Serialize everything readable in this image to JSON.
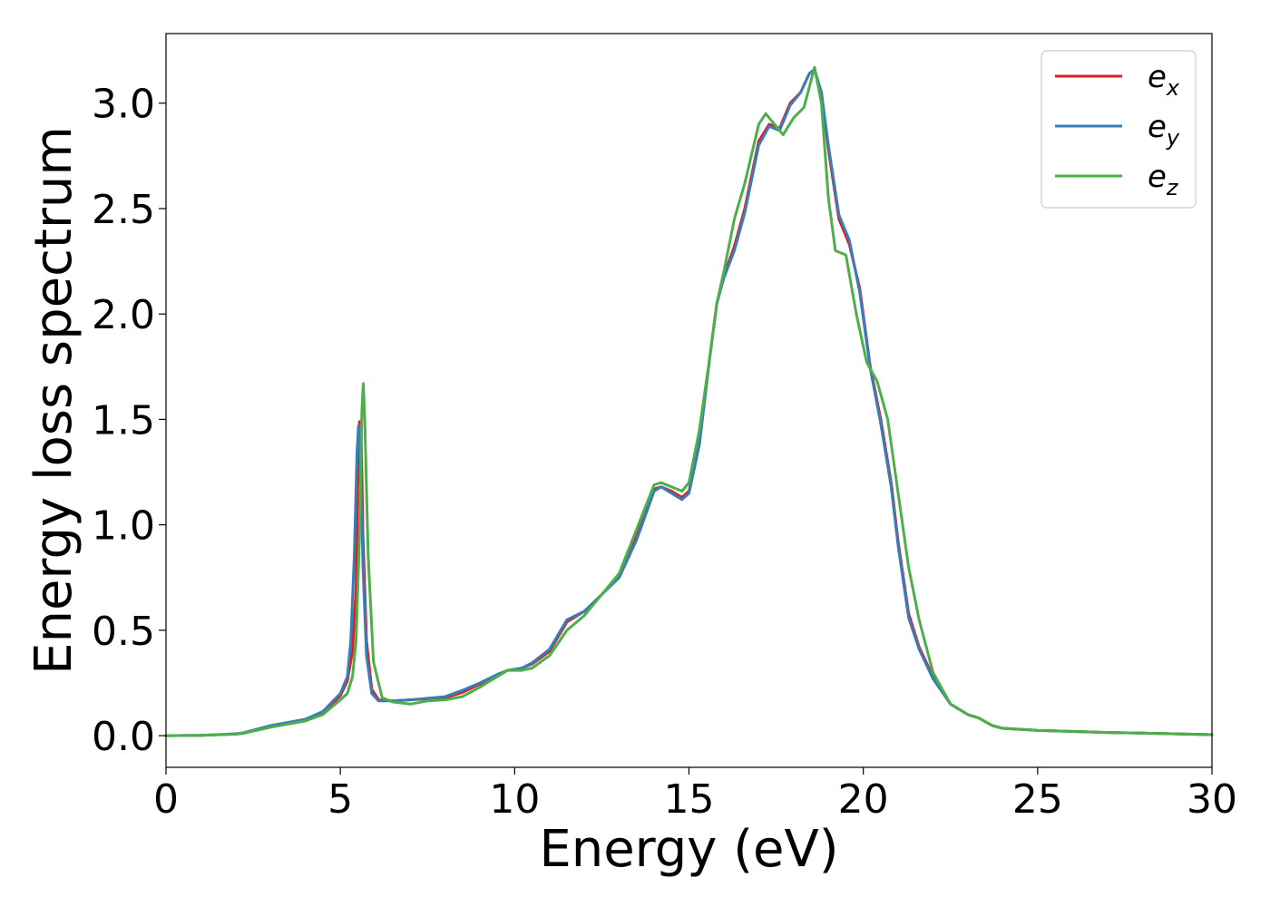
{
  "chart_data": {
    "type": "line",
    "title": "",
    "xlabel": "Energy (eV)",
    "ylabel": "Energy loss spectrum",
    "xlim": [
      0,
      30
    ],
    "ylim": [
      -0.15,
      3.33
    ],
    "xticks": [
      0,
      5,
      10,
      15,
      20,
      25,
      30
    ],
    "xtick_labels": [
      "0",
      "5",
      "10",
      "15",
      "20",
      "25",
      "30"
    ],
    "yticks": [
      0.0,
      0.5,
      1.0,
      1.5,
      2.0,
      2.5,
      3.0
    ],
    "ytick_labels": [
      "0.0",
      "0.5",
      "1.0",
      "1.5",
      "2.0",
      "2.5",
      "3.0"
    ],
    "grid": false,
    "legend_position": "top-right",
    "series": [
      {
        "name": "e_x",
        "legend_base": "e",
        "legend_sub": "x",
        "color": "#e41a1c",
        "x": [
          0,
          1,
          2,
          2.2,
          3,
          4,
          4.5,
          5,
          5.2,
          5.35,
          5.45,
          5.5,
          5.55,
          5.6,
          5.65,
          5.75,
          5.9,
          6.1,
          6.5,
          7,
          8,
          8.5,
          9,
          9.5,
          9.8,
          10.2,
          10.5,
          11,
          11.5,
          12,
          12.5,
          13,
          13.5,
          14,
          14.2,
          14.5,
          14.8,
          15,
          15.3,
          15.6,
          15.8,
          16,
          16.3,
          16.6,
          17,
          17.3,
          17.6,
          17.9,
          18.2,
          18.45,
          18.6,
          18.8,
          19,
          19.3,
          19.6,
          19.9,
          20.2,
          20.5,
          20.8,
          21,
          21.3,
          21.6,
          22,
          22.5,
          23,
          23.3,
          23.7,
          24,
          25,
          27,
          28,
          30
        ],
        "y": [
          0.0,
          0.002,
          0.008,
          0.012,
          0.045,
          0.075,
          0.11,
          0.19,
          0.26,
          0.4,
          0.7,
          1.2,
          1.49,
          1.42,
          0.95,
          0.45,
          0.22,
          0.17,
          0.165,
          0.17,
          0.18,
          0.205,
          0.245,
          0.29,
          0.31,
          0.32,
          0.34,
          0.4,
          0.54,
          0.59,
          0.67,
          0.76,
          0.95,
          1.17,
          1.18,
          1.16,
          1.13,
          1.16,
          1.4,
          1.8,
          2.05,
          2.18,
          2.32,
          2.5,
          2.82,
          2.9,
          2.88,
          3.0,
          3.05,
          3.14,
          3.16,
          3.05,
          2.78,
          2.45,
          2.33,
          2.12,
          1.75,
          1.5,
          1.2,
          0.92,
          0.58,
          0.42,
          0.28,
          0.15,
          0.1,
          0.085,
          0.048,
          0.035,
          0.025,
          0.015,
          0.012,
          0.005
        ]
      },
      {
        "name": "e_y",
        "legend_base": "e",
        "legend_sub": "y",
        "color": "#377eb8",
        "x": [
          0,
          1,
          2,
          2.2,
          3,
          4,
          4.5,
          5,
          5.2,
          5.3,
          5.4,
          5.48,
          5.52,
          5.58,
          5.65,
          5.75,
          5.9,
          6.1,
          6.5,
          7,
          8,
          8.5,
          9,
          9.5,
          9.8,
          10.2,
          10.5,
          11,
          11.5,
          12,
          12.5,
          13,
          13.5,
          14,
          14.2,
          14.5,
          14.8,
          15,
          15.3,
          15.6,
          15.8,
          16,
          16.3,
          16.6,
          17,
          17.3,
          17.6,
          17.9,
          18.2,
          18.45,
          18.6,
          18.8,
          19,
          19.3,
          19.6,
          19.9,
          20.2,
          20.5,
          20.8,
          21,
          21.3,
          21.6,
          22,
          22.5,
          23,
          23.3,
          23.7,
          24,
          25,
          27,
          28,
          30
        ],
        "y": [
          0.0,
          0.002,
          0.009,
          0.013,
          0.048,
          0.078,
          0.115,
          0.2,
          0.28,
          0.45,
          0.85,
          1.35,
          1.47,
          1.3,
          0.8,
          0.38,
          0.2,
          0.165,
          0.165,
          0.17,
          0.185,
          0.215,
          0.25,
          0.29,
          0.31,
          0.32,
          0.345,
          0.41,
          0.55,
          0.59,
          0.67,
          0.75,
          0.93,
          1.16,
          1.18,
          1.15,
          1.12,
          1.15,
          1.38,
          1.8,
          2.05,
          2.17,
          2.3,
          2.48,
          2.8,
          2.89,
          2.87,
          2.99,
          3.05,
          3.14,
          3.16,
          3.05,
          2.8,
          2.47,
          2.35,
          2.1,
          1.74,
          1.48,
          1.18,
          0.9,
          0.56,
          0.41,
          0.27,
          0.15,
          0.1,
          0.085,
          0.048,
          0.035,
          0.025,
          0.015,
          0.012,
          0.005
        ]
      },
      {
        "name": "e_z",
        "legend_base": "e",
        "legend_sub": "z",
        "color": "#4daf4a",
        "x": [
          0,
          1,
          2,
          2.2,
          3,
          4,
          4.5,
          5,
          5.2,
          5.35,
          5.45,
          5.55,
          5.62,
          5.66,
          5.7,
          5.8,
          5.95,
          6.2,
          6.5,
          7,
          7.5,
          8,
          8.5,
          9,
          9.5,
          9.8,
          10.2,
          10.5,
          11,
          11.5,
          12,
          12.5,
          13,
          13.5,
          14,
          14.2,
          14.5,
          14.8,
          15,
          15.3,
          15.6,
          15.8,
          16,
          16.3,
          16.6,
          17,
          17.2,
          17.5,
          17.7,
          18,
          18.3,
          18.6,
          18.8,
          19,
          19.2,
          19.5,
          19.8,
          20.1,
          20.4,
          20.7,
          21,
          21.3,
          21.6,
          22,
          22.5,
          23,
          23.3,
          23.7,
          24,
          25,
          27,
          28,
          30
        ],
        "y": [
          0.0,
          0.002,
          0.007,
          0.011,
          0.04,
          0.07,
          0.1,
          0.17,
          0.2,
          0.28,
          0.45,
          0.95,
          1.55,
          1.67,
          1.5,
          0.85,
          0.35,
          0.18,
          0.16,
          0.15,
          0.165,
          0.17,
          0.185,
          0.23,
          0.28,
          0.31,
          0.31,
          0.32,
          0.38,
          0.5,
          0.57,
          0.67,
          0.77,
          0.98,
          1.19,
          1.2,
          1.18,
          1.16,
          1.2,
          1.45,
          1.8,
          2.05,
          2.2,
          2.45,
          2.62,
          2.9,
          2.95,
          2.89,
          2.85,
          2.93,
          2.98,
          3.17,
          3.0,
          2.55,
          2.3,
          2.28,
          2.0,
          1.77,
          1.68,
          1.5,
          1.15,
          0.8,
          0.55,
          0.3,
          0.15,
          0.1,
          0.085,
          0.048,
          0.035,
          0.025,
          0.015,
          0.012,
          0.005
        ]
      }
    ]
  }
}
